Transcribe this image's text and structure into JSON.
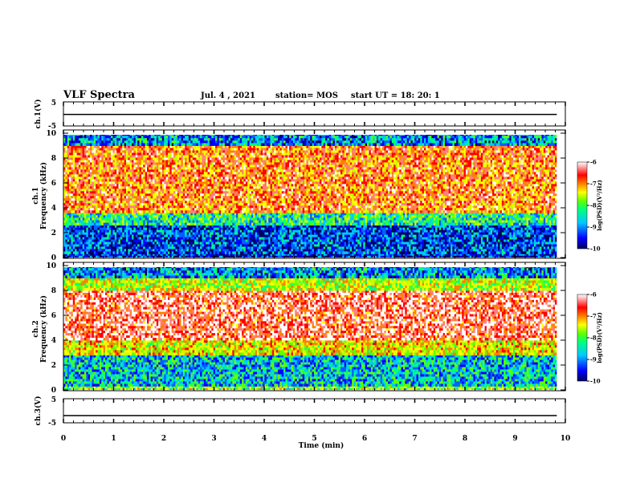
{
  "header": {
    "title": "VLF Spectra",
    "date": "Jul. 4 , 2021",
    "station": "station= MOS",
    "start": "start UT = 18: 20: 1"
  },
  "chart_data": [
    {
      "type": "line",
      "panel": "ch1",
      "ylabel": "ch.1(V)",
      "ylim": [
        -5,
        5
      ],
      "y_ticks": [
        "5",
        "-5"
      ],
      "x": [
        0,
        9.83
      ],
      "y": [
        -0.2,
        -0.2
      ]
    },
    {
      "type": "heatmap",
      "panel": "spec1",
      "ylabel_top": "ch.1",
      "ylabel": "Frequency (kHz)",
      "ylim": [
        0,
        10
      ],
      "y_ticks": [
        "0",
        "2",
        "4",
        "6",
        "8",
        "10"
      ],
      "xlim": [
        0,
        10
      ],
      "colorbar": {
        "label": "log(PSD)(V²/Hz)",
        "range": [
          -10,
          -6
        ],
        "ticks": [
          "-6",
          "-7",
          "-8",
          "-9",
          "-10"
        ]
      },
      "bands_khz": [
        {
          "from": 0,
          "to": 0.3,
          "level": -9.5
        },
        {
          "from": 0.3,
          "to": 2.6,
          "level": -9.3
        },
        {
          "from": 2.6,
          "to": 3.6,
          "level": -8.5
        },
        {
          "from": 3.6,
          "to": 9.0,
          "level": -7.0
        },
        {
          "from": 9.0,
          "to": 10,
          "level": -9.0
        }
      ]
    },
    {
      "type": "heatmap",
      "panel": "spec2",
      "ylabel_top": "ch.2",
      "ylabel": "Frequency (kHz)",
      "ylim": [
        0,
        10
      ],
      "y_ticks": [
        "0",
        "2",
        "4",
        "6",
        "8",
        "10"
      ],
      "xlim": [
        0,
        10
      ],
      "colorbar": {
        "label": "log(PSD)(V²/Hz)",
        "range": [
          -10,
          -6
        ],
        "ticks": [
          "-6",
          "-7",
          "-8",
          "-9",
          "-10"
        ]
      },
      "bands_khz": [
        {
          "from": 0,
          "to": 0.3,
          "level": -8.0
        },
        {
          "from": 0.3,
          "to": 2.8,
          "level": -8.8
        },
        {
          "from": 2.8,
          "to": 4.0,
          "level": -7.6
        },
        {
          "from": 4.0,
          "to": 8.0,
          "level": -6.6
        },
        {
          "from": 8.0,
          "to": 9.0,
          "level": -7.8
        },
        {
          "from": 9.0,
          "to": 10,
          "level": -9.0
        }
      ]
    },
    {
      "type": "line",
      "panel": "ch3",
      "ylabel": "ch.3(V)",
      "ylim": [
        -5,
        5
      ],
      "y_ticks": [
        "5",
        "-5"
      ],
      "x": [
        0,
        9.83
      ],
      "y": [
        -2.0,
        -2.0
      ]
    }
  ],
  "x_axis": {
    "label": "Time (min)",
    "ticks": [
      "0",
      "1",
      "2",
      "3",
      "4",
      "5",
      "6",
      "7",
      "8",
      "9",
      "10"
    ],
    "range": [
      0,
      10
    ]
  },
  "colormap": [
    "#000080",
    "#0000ff",
    "#00bfff",
    "#00ff80",
    "#80ff00",
    "#ffff00",
    "#ff8000",
    "#ff0000",
    "#ffffff"
  ]
}
